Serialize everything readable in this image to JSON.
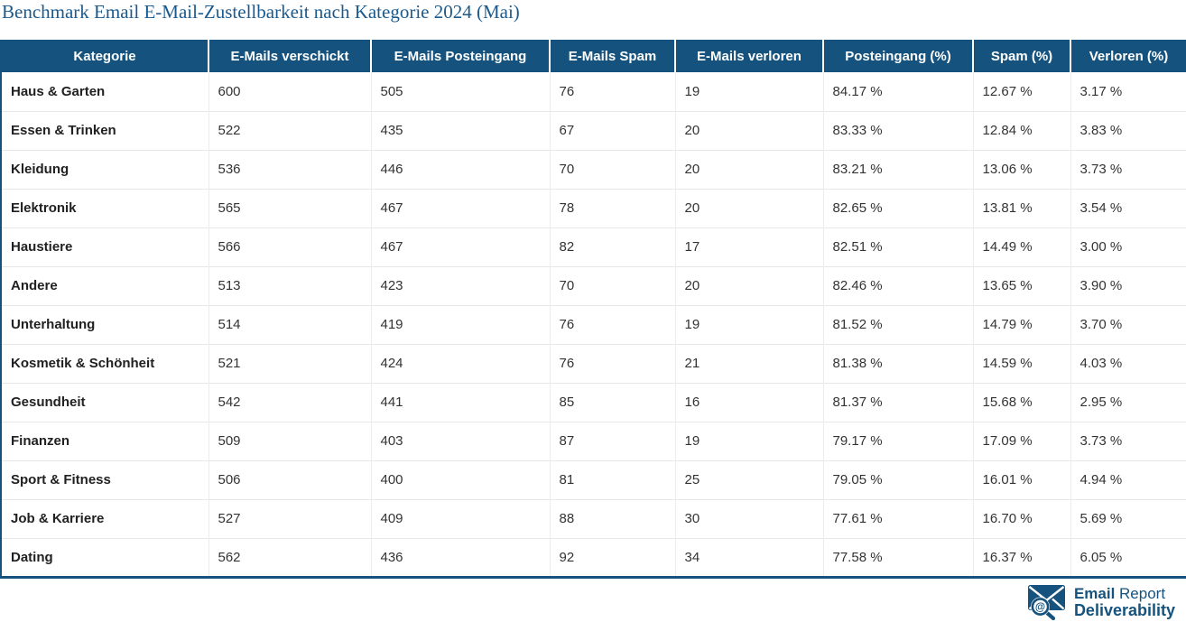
{
  "page": {
    "title": "Benchmark Email E-Mail-Zustellbarkeit nach Kategorie 2024 (Mai)"
  },
  "colors": {
    "primary_blue": "#15537e",
    "title_blue": "#1a5a8e",
    "row_divider": "#e7e7e7",
    "header_text": "#ffffff"
  },
  "chart_data": {
    "type": "table",
    "title": "Benchmark Email E-Mail-Zustellbarkeit nach Kategorie 2024 (Mai)",
    "columns": [
      "Kategorie",
      "E-Mails verschickt",
      "E-Mails Posteingang",
      "E-Mails Spam",
      "E-Mails verloren",
      "Posteingang (%)",
      "Spam (%)",
      "Verloren (%)"
    ],
    "rows": [
      [
        "Haus & Garten",
        "600",
        "505",
        "76",
        "19",
        "84.17 %",
        "12.67 %",
        "3.17 %"
      ],
      [
        "Essen & Trinken",
        "522",
        "435",
        "67",
        "20",
        "83.33 %",
        "12.84 %",
        "3.83 %"
      ],
      [
        "Kleidung",
        "536",
        "446",
        "70",
        "20",
        "83.21 %",
        "13.06 %",
        "3.73 %"
      ],
      [
        "Elektronik",
        "565",
        "467",
        "78",
        "20",
        "82.65 %",
        "13.81 %",
        "3.54 %"
      ],
      [
        "Haustiere",
        "566",
        "467",
        "82",
        "17",
        "82.51 %",
        "14.49 %",
        "3.00 %"
      ],
      [
        "Andere",
        "513",
        "423",
        "70",
        "20",
        "82.46 %",
        "13.65 %",
        "3.90 %"
      ],
      [
        "Unterhaltung",
        "514",
        "419",
        "76",
        "19",
        "81.52 %",
        "14.79 %",
        "3.70 %"
      ],
      [
        "Kosmetik & Schönheit",
        "521",
        "424",
        "76",
        "21",
        "81.38 %",
        "14.59 %",
        "4.03 %"
      ],
      [
        "Gesundheit",
        "542",
        "441",
        "85",
        "16",
        "81.37 %",
        "15.68 %",
        "2.95 %"
      ],
      [
        "Finanzen",
        "509",
        "403",
        "87",
        "19",
        "79.17 %",
        "17.09 %",
        "3.73 %"
      ],
      [
        "Sport & Fitness",
        "506",
        "400",
        "81",
        "25",
        "79.05 %",
        "16.01 %",
        "4.94 %"
      ],
      [
        "Job & Karriere",
        "527",
        "409",
        "88",
        "30",
        "77.61 %",
        "16.70 %",
        "5.69 %"
      ],
      [
        "Dating",
        "562",
        "436",
        "92",
        "34",
        "77.58 %",
        "16.37 %",
        "6.05 %"
      ]
    ]
  },
  "footer": {
    "logo": {
      "icon": "envelope-magnifier-at-icon",
      "brand_bold": "Email",
      "brand_light": " Report",
      "brand_line2": "Deliverability"
    }
  }
}
